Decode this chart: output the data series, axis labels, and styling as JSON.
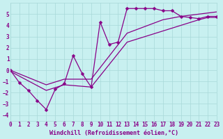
{
  "bg_color": "#c8f0f0",
  "grid_color": "#a8d8d8",
  "line_color": "#880088",
  "xlabel": "Windchill (Refroidissement éolien,°C)",
  "xlim": [
    0,
    23
  ],
  "ylim": [
    -4.5,
    6.0
  ],
  "yticks": [
    -4,
    -3,
    -2,
    -1,
    0,
    1,
    2,
    3,
    4,
    5
  ],
  "xticks": [
    0,
    1,
    2,
    3,
    4,
    5,
    6,
    7,
    8,
    9,
    10,
    11,
    12,
    13,
    14,
    15,
    16,
    17,
    18,
    19,
    20,
    21,
    22,
    23
  ],
  "line1_x": [
    0,
    1,
    2,
    3,
    4,
    5,
    6,
    7,
    8,
    9,
    10,
    11,
    12,
    13,
    14,
    15,
    16,
    17,
    18,
    19,
    20,
    21,
    22,
    23
  ],
  "line1_y": [
    0.0,
    -1.1,
    -1.8,
    -2.7,
    -3.5,
    -1.7,
    -1.2,
    1.3,
    -0.3,
    -1.5,
    4.3,
    2.3,
    2.5,
    5.5,
    5.5,
    5.5,
    5.5,
    5.3,
    5.3,
    4.8,
    4.7,
    4.6,
    4.8,
    4.8
  ],
  "line2_x": [
    0,
    4,
    6,
    9,
    13,
    17,
    19,
    21,
    22,
    23
  ],
  "line2_y": [
    -0.1,
    -1.8,
    -1.3,
    -1.5,
    2.5,
    3.5,
    4.0,
    4.5,
    4.7,
    4.7
  ],
  "line3_x": [
    0,
    4,
    6,
    9,
    13,
    17,
    19,
    21,
    22,
    23
  ],
  "line3_y": [
    0.0,
    -1.3,
    -0.8,
    -0.8,
    3.3,
    4.5,
    4.8,
    5.0,
    5.1,
    5.2
  ]
}
